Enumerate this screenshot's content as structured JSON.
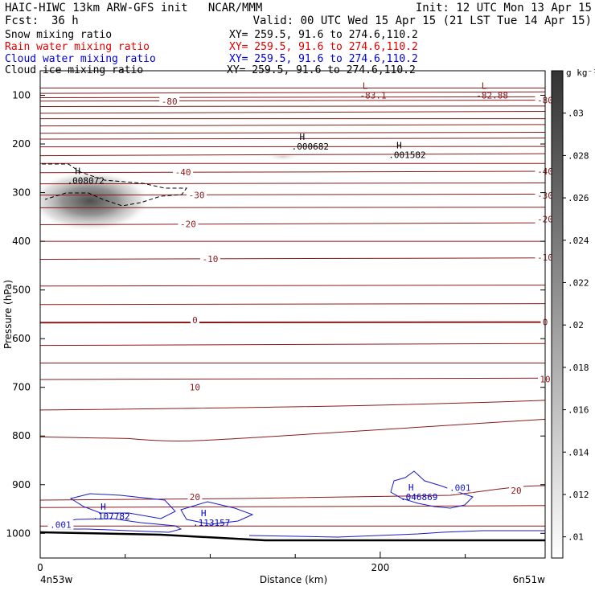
{
  "header": {
    "line1_left": "HAIC-HIWC 13km ARW-GFS init   NCAR/MMM",
    "line1_right": "Init: 12 UTC Mon 13 Apr 15",
    "fcst_label": "Fcst:",
    "fcst_value": "36 h",
    "valid": "Valid: 00 UTC Wed 15 Apr 15 (21 LST Tue 14 Apr 15)"
  },
  "fields": [
    {
      "name": "Snow mixing ratio",
      "xy": "XY= 259.5, 91.6 to 274.6,110.2",
      "color": "#000000"
    },
    {
      "name": "Rain water mixing ratio",
      "xy": "XY= 259.5, 91.6 to 274.6,110.2",
      "color": "#e00000"
    },
    {
      "name": "Cloud water mixing ratio",
      "xy": "XY= 259.5, 91.6 to 274.6,110.2",
      "color": "#0000dd"
    },
    {
      "name": "Cloud ice mixing ratio",
      "xy": "XY= 259.5, 91.6 to 274.6,110.2",
      "color": "#000000"
    }
  ],
  "chart_data": {
    "type": "heatmap",
    "title": "Snow mixing ratio",
    "xlabel": "Distance (km)",
    "ylabel": "Pressure (hPa)",
    "xlim": [
      0,
      297
    ],
    "ylim_pressure": [
      1050,
      50
    ],
    "x_ticks": [
      0,
      200
    ],
    "x_tick_labels": [
      "0",
      "200"
    ],
    "y_ticks": [
      100,
      200,
      300,
      400,
      500,
      600,
      700,
      800,
      900,
      1000
    ],
    "y_tick_labels": [
      "100",
      "200",
      "300",
      "400",
      "500",
      "600",
      "700",
      "800",
      "900",
      "1000"
    ],
    "x_endpoint_labels": [
      "4n53w",
      "6n51w"
    ],
    "colorbar": {
      "unit": "g kg⁻¹",
      "ticks": [
        0.01,
        0.012,
        0.014,
        0.016,
        0.018,
        0.02,
        0.022,
        0.024,
        0.026,
        0.028,
        0.03
      ],
      "tick_labels": [
        ".01",
        ".012",
        ".014",
        ".016",
        ".018",
        ".02",
        ".022",
        ".024",
        ".026",
        ".028",
        ".03"
      ],
      "color_low": "#ffffff",
      "color_high": "#333333"
    },
    "temperature_isotherm_labels": [
      {
        "text": "-80",
        "x": 76,
        "p": 112
      },
      {
        "text": "-80",
        "x": 297,
        "p": 110
      },
      {
        "text": "-40",
        "x": 84,
        "p": 258
      },
      {
        "text": "-40",
        "x": 297,
        "p": 256
      },
      {
        "text": "-30",
        "x": 92,
        "p": 305
      },
      {
        "text": "-30",
        "x": 297,
        "p": 306
      },
      {
        "text": "-20",
        "x": 87,
        "p": 364
      },
      {
        "text": "-20",
        "x": 297,
        "p": 354
      },
      {
        "text": "-10",
        "x": 100,
        "p": 436
      },
      {
        "text": "-10",
        "x": 297,
        "p": 433
      },
      {
        "text": "0",
        "x": 91,
        "p": 562
      },
      {
        "text": "0",
        "x": 297,
        "p": 566
      },
      {
        "text": "10",
        "x": 91,
        "p": 700
      },
      {
        "text": "10",
        "x": 297,
        "p": 683
      },
      {
        "text": "20",
        "x": 91,
        "p": 925
      },
      {
        "text": "20",
        "x": 280,
        "p": 912
      }
    ],
    "extrema": [
      {
        "kind": "L",
        "value": "-83.1",
        "x": 193,
        "p": 90,
        "color": "#8b1a1a"
      },
      {
        "kind": "L",
        "value": "-82.88",
        "x": 263,
        "p": 90,
        "color": "#8b1a1a"
      },
      {
        "kind": "H",
        "value": ".000682",
        "x": 156,
        "p": 195,
        "color": "#000000"
      },
      {
        "kind": "H",
        "value": ".001582",
        "x": 213,
        "p": 212,
        "color": "#000000"
      },
      {
        "kind": "H",
        "value": ".008072",
        "x": 24,
        "p": 265,
        "color": "#000000"
      },
      {
        "kind": "H",
        "value": ".107782",
        "x": 39,
        "p": 955,
        "color": "#0000cc"
      },
      {
        "kind": "H",
        "value": ".113157",
        "x": 98,
        "p": 968,
        "color": "#0000cc"
      },
      {
        "kind": "H",
        "value": ".046869",
        "x": 220,
        "p": 915,
        "color": "#0000cc"
      }
    ],
    "cloud_water_labels": [
      {
        "text": ".001",
        "x": 12,
        "p": 982
      },
      {
        "text": ".001",
        "x": 247,
        "p": 906
      }
    ],
    "snow_maxima": [
      {
        "x": 12,
        "p": 305,
        "value": 0.03
      },
      {
        "x": 150,
        "p": 226,
        "value": 0.0007
      }
    ]
  }
}
